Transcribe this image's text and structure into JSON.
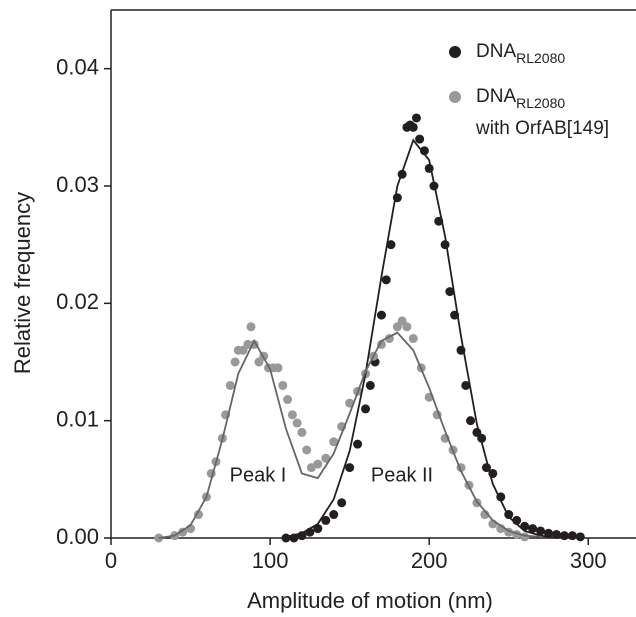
{
  "chart_data": {
    "type": "scatter",
    "xlabel": "Amplitude of motion (nm)",
    "ylabel": "Relative frequency",
    "xlim": [
      0,
      330
    ],
    "ylim": [
      0,
      0.045
    ],
    "xticks": [
      0,
      100,
      200,
      300
    ],
    "yticks": [
      {
        "value": 0,
        "label": "0.00"
      },
      0.01,
      0.02,
      0.03,
      0.04
    ],
    "series": [
      {
        "name": "DNA",
        "name_subscript": "RL2080",
        "color": "#231f20",
        "x": [
          110,
          115,
          120,
          125,
          130,
          135,
          140,
          145,
          150,
          155,
          160,
          163,
          166,
          170,
          173,
          176,
          180,
          183,
          186,
          188,
          190,
          192,
          194,
          197,
          200,
          203,
          206,
          210,
          213,
          216,
          220,
          223,
          226,
          230,
          233,
          236,
          240,
          245,
          250,
          255,
          260,
          265,
          270,
          275,
          280,
          285,
          290,
          295
        ],
        "values": [
          0,
          0,
          0.0002,
          0.0005,
          0.0008,
          0.0015,
          0.002,
          0.003,
          0.006,
          0.008,
          0.011,
          0.013,
          0.015,
          0.019,
          0.022,
          0.025,
          0.029,
          0.031,
          0.035,
          0.0352,
          0.035,
          0.0358,
          0.034,
          0.033,
          0.0315,
          0.03,
          0.027,
          0.025,
          0.021,
          0.019,
          0.016,
          0.013,
          0.01,
          0.009,
          0.0085,
          0.006,
          0.0055,
          0.0035,
          0.002,
          0.0015,
          0.001,
          0.0008,
          0.0006,
          0.0004,
          0.0003,
          0.0002,
          0.0002,
          0.0001
        ]
      },
      {
        "name": "DNA",
        "name_subscript": "RL2080",
        "name_suffix": "with OrfAB[149]",
        "color": "#999999",
        "x": [
          30,
          40,
          45,
          50,
          55,
          60,
          63,
          66,
          70,
          72,
          75,
          78,
          80,
          83,
          86,
          88,
          90,
          93,
          96,
          99,
          102,
          105,
          108,
          111,
          114,
          117,
          120,
          123,
          126,
          130,
          135,
          140,
          145,
          150,
          155,
          160,
          165,
          170,
          175,
          180,
          183,
          186,
          190,
          195,
          200,
          205,
          210,
          215,
          220,
          225,
          230,
          235,
          240,
          245,
          250,
          255,
          260
        ],
        "values": [
          0,
          0.0002,
          0.0005,
          0.0008,
          0.002,
          0.0035,
          0.0055,
          0.0065,
          0.0085,
          0.0105,
          0.013,
          0.015,
          0.016,
          0.016,
          0.0165,
          0.018,
          0.0165,
          0.015,
          0.0155,
          0.0145,
          0.0145,
          0.0145,
          0.013,
          0.0118,
          0.0105,
          0.0098,
          0.009,
          0.0075,
          0.006,
          0.0063,
          0.0068,
          0.0082,
          0.0095,
          0.0115,
          0.0125,
          0.014,
          0.0155,
          0.0165,
          0.017,
          0.018,
          0.0185,
          0.018,
          0.017,
          0.0145,
          0.012,
          0.0105,
          0.0085,
          0.0075,
          0.006,
          0.0045,
          0.003,
          0.002,
          0.0012,
          0.0008,
          0.0005,
          0.0003,
          0.0001
        ]
      }
    ],
    "fits": [
      {
        "color": "#231f20",
        "x": [
          110,
          120,
          130,
          140,
          150,
          160,
          170,
          180,
          190,
          200,
          210,
          220,
          230,
          240,
          250,
          260,
          270,
          280
        ],
        "values": [
          0.0001,
          0.0004,
          0.0012,
          0.0033,
          0.0074,
          0.014,
          0.0223,
          0.03,
          0.0339,
          0.0322,
          0.0257,
          0.0172,
          0.0097,
          0.0046,
          0.0018,
          0.0006,
          0.0002,
          0
        ]
      },
      {
        "color": "#666666",
        "x": [
          30,
          40,
          50,
          60,
          70,
          80,
          90,
          100,
          110,
          120,
          130,
          140,
          150,
          160,
          170,
          180,
          190,
          200,
          210,
          220,
          230,
          240,
          250,
          260,
          270
        ],
        "values": [
          0,
          0.0002,
          0.0011,
          0.0035,
          0.0084,
          0.014,
          0.0168,
          0.0144,
          0.0093,
          0.0055,
          0.0051,
          0.0072,
          0.0106,
          0.0142,
          0.0168,
          0.0175,
          0.016,
          0.0128,
          0.0091,
          0.0057,
          0.0031,
          0.0015,
          0.0006,
          0.0002,
          0.0001
        ]
      }
    ],
    "annotations": [
      "Peak I",
      "Peak II"
    ]
  }
}
